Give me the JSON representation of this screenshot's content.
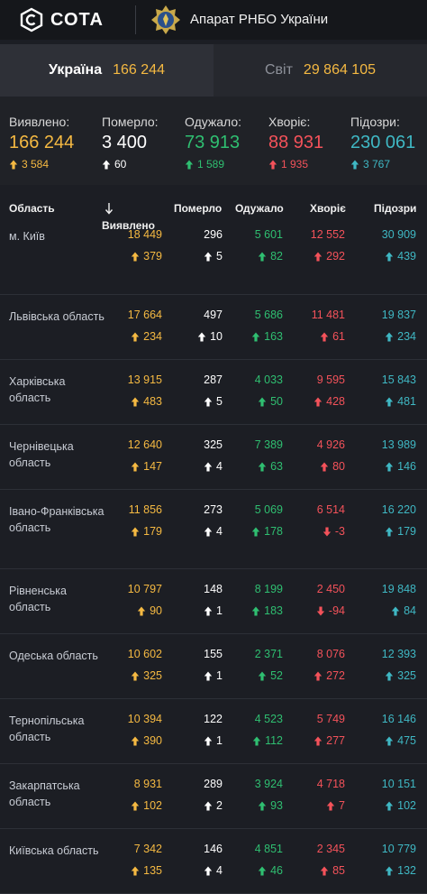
{
  "header": {
    "logo_text": "СОТА",
    "org_title": "Апарат РНБО України"
  },
  "tabs": [
    {
      "label": "Україна",
      "value": "166 244",
      "active": true
    },
    {
      "label": "Світ",
      "value": "29 864 105",
      "active": false
    }
  ],
  "summary": [
    {
      "label": "Виявлено:",
      "value": "166 244",
      "delta": "3 584",
      "color": "#f5b942",
      "direction": "up"
    },
    {
      "label": "Померло:",
      "value": "3 400",
      "delta": "60",
      "color": "#ffffff",
      "direction": "up"
    },
    {
      "label": "Одужало:",
      "value": "73 913",
      "delta": "1 589",
      "color": "#2fbf71",
      "direction": "up"
    },
    {
      "label": "Хворіє:",
      "value": "88 931",
      "delta": "1 935",
      "color": "#f4525a",
      "direction": "up"
    },
    {
      "label": "Підозри:",
      "value": "230 061",
      "delta": "3 767",
      "color": "#3fb8c4",
      "direction": "up"
    }
  ],
  "table": {
    "headers": {
      "region": "Область",
      "detected": "Виявлено",
      "died": "Померло",
      "recovered": "Одужало",
      "sick": "Хворіє",
      "suspected": "Підозри"
    },
    "sort_icon": "arrow-down-icon",
    "rows": [
      {
        "region": "м. Київ",
        "detected": [
          "18 449",
          "379",
          "up"
        ],
        "died": [
          "296",
          "5",
          "up"
        ],
        "recovered": [
          "5 601",
          "82",
          "up"
        ],
        "sick": [
          "12 552",
          "292",
          "up"
        ],
        "suspected": [
          "30 909",
          "439",
          "up"
        ]
      },
      {
        "region": "Львівська область",
        "detected": [
          "17 664",
          "234",
          "up"
        ],
        "died": [
          "497",
          "10",
          "up"
        ],
        "recovered": [
          "5 686",
          "163",
          "up"
        ],
        "sick": [
          "11 481",
          "61",
          "up"
        ],
        "suspected": [
          "19 837",
          "234",
          "up"
        ]
      },
      {
        "region": "Харківська область",
        "detected": [
          "13 915",
          "483",
          "up"
        ],
        "died": [
          "287",
          "5",
          "up"
        ],
        "recovered": [
          "4 033",
          "50",
          "up"
        ],
        "sick": [
          "9 595",
          "428",
          "up"
        ],
        "suspected": [
          "15 843",
          "481",
          "up"
        ]
      },
      {
        "region": "Чернівецька область",
        "detected": [
          "12 640",
          "147",
          "up"
        ],
        "died": [
          "325",
          "4",
          "up"
        ],
        "recovered": [
          "7 389",
          "63",
          "up"
        ],
        "sick": [
          "4 926",
          "80",
          "up"
        ],
        "suspected": [
          "13 989",
          "146",
          "up"
        ]
      },
      {
        "region": "Івано-Франківська область",
        "detected": [
          "11 856",
          "179",
          "up"
        ],
        "died": [
          "273",
          "4",
          "up"
        ],
        "recovered": [
          "5 069",
          "178",
          "up"
        ],
        "sick": [
          "6 514",
          "-3",
          "down"
        ],
        "suspected": [
          "16 220",
          "179",
          "up"
        ]
      },
      {
        "region": "Рівненська область",
        "detected": [
          "10 797",
          "90",
          "up"
        ],
        "died": [
          "148",
          "1",
          "up"
        ],
        "recovered": [
          "8 199",
          "183",
          "up"
        ],
        "sick": [
          "2 450",
          "-94",
          "down"
        ],
        "suspected": [
          "19 848",
          "84",
          "up"
        ]
      },
      {
        "region": "Одеська область",
        "detected": [
          "10 602",
          "325",
          "up"
        ],
        "died": [
          "155",
          "1",
          "up"
        ],
        "recovered": [
          "2 371",
          "52",
          "up"
        ],
        "sick": [
          "8 076",
          "272",
          "up"
        ],
        "suspected": [
          "12 393",
          "325",
          "up"
        ]
      },
      {
        "region": "Тернопільська область",
        "detected": [
          "10 394",
          "390",
          "up"
        ],
        "died": [
          "122",
          "1",
          "up"
        ],
        "recovered": [
          "4 523",
          "112",
          "up"
        ],
        "sick": [
          "5 749",
          "277",
          "up"
        ],
        "suspected": [
          "16 146",
          "475",
          "up"
        ]
      },
      {
        "region": "Закарпатська область",
        "detected": [
          "8 931",
          "102",
          "up"
        ],
        "died": [
          "289",
          "2",
          "up"
        ],
        "recovered": [
          "3 924",
          "93",
          "up"
        ],
        "sick": [
          "4 718",
          "7",
          "up"
        ],
        "suspected": [
          "10 151",
          "102",
          "up"
        ]
      },
      {
        "region": "Київська область",
        "detected": [
          "7 342",
          "135",
          "up"
        ],
        "died": [
          "146",
          "4",
          "up"
        ],
        "recovered": [
          "4 851",
          "46",
          "up"
        ],
        "sick": [
          "2 345",
          "85",
          "up"
        ],
        "suspected": [
          "10 779",
          "132",
          "up"
        ]
      }
    ]
  }
}
